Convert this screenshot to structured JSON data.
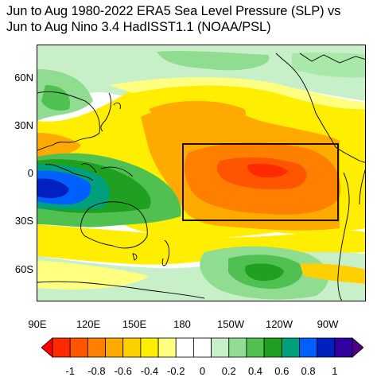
{
  "title": {
    "line1": "Jun to Aug 1980-2022 ERA5 Sea Level Pressure (SLP) vs",
    "line2": "Jun to Aug Nino 3.4 HadISST1.1 (NOAA/PSL)"
  },
  "map": {
    "lat_range": [
      -80,
      80
    ],
    "lon_range": [
      90,
      295
    ],
    "lat_ticks": [
      {
        "label": "60N",
        "value": 60
      },
      {
        "label": "30N",
        "value": 30
      },
      {
        "label": "0",
        "value": 0
      },
      {
        "label": "30S",
        "value": -30
      },
      {
        "label": "60S",
        "value": -60
      }
    ],
    "lon_ticks": [
      {
        "label": "90E",
        "value": 90
      },
      {
        "label": "120E",
        "value": 120
      },
      {
        "label": "150E",
        "value": 150
      },
      {
        "label": "180",
        "value": 180
      },
      {
        "label": "150W",
        "value": 210
      },
      {
        "label": "120W",
        "value": 240
      },
      {
        "label": "90W",
        "value": 270
      }
    ],
    "nino_box": {
      "lon": [
        180,
        282
      ],
      "lat": [
        -30,
        18
      ]
    }
  },
  "colorbar": {
    "labels": [
      "-1",
      "-0.8",
      "-0.6",
      "-0.4",
      "-0.2",
      "0",
      "0.2",
      "0.4",
      "0.6",
      "0.8",
      "1"
    ],
    "colors": [
      "#ff0000",
      "#ff2a00",
      "#ff5500",
      "#ff8000",
      "#ffaa00",
      "#ffd000",
      "#ffee00",
      "#ffff80",
      "#ffffff",
      "#ffffff",
      "#c8f0c8",
      "#90dc90",
      "#50c050",
      "#20a020",
      "#00a07a",
      "#0060ff",
      "#0020c0",
      "#3000a0",
      "#500080"
    ]
  }
}
